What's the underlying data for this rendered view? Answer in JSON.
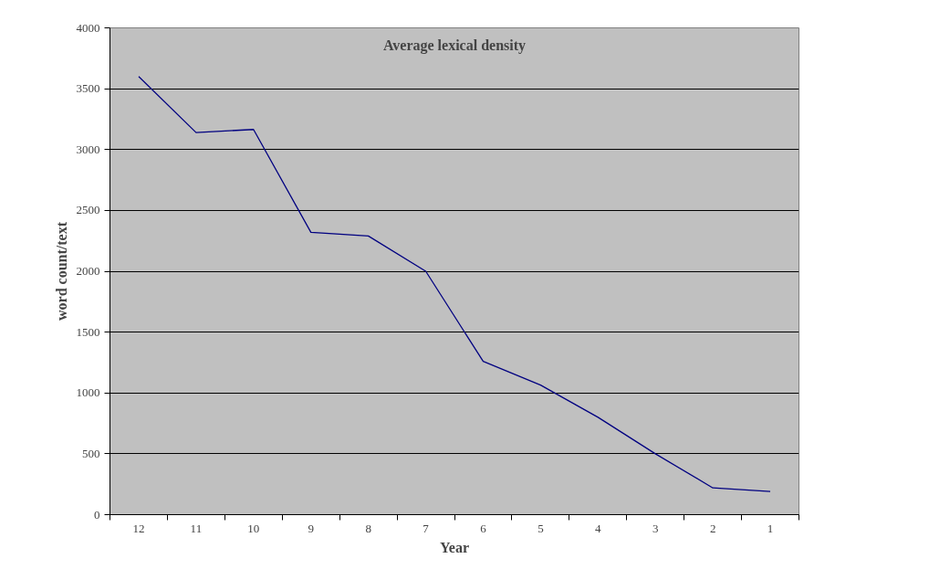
{
  "chart_data": {
    "type": "line",
    "title": "Average lexical density",
    "xlabel": "Year",
    "ylabel": "word count/text",
    "categories": [
      "12",
      "11",
      "10",
      "9",
      "8",
      "7",
      "6",
      "5",
      "4",
      "3",
      "2",
      "1"
    ],
    "series": [
      {
        "color": "#000080",
        "values": [
          3600,
          3140,
          3165,
          2320,
          2290,
          2000,
          1260,
          1065,
          800,
          500,
          220,
          190
        ]
      }
    ],
    "ylim": [
      0,
      4000
    ],
    "yticks": [
      0,
      500,
      1000,
      1500,
      2000,
      2500,
      3000,
      3500,
      4000
    ],
    "grid": "y",
    "marker": "none",
    "line_style": "solid"
  }
}
